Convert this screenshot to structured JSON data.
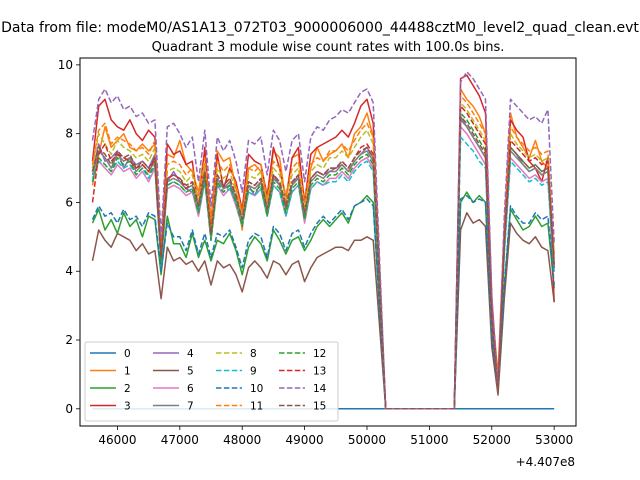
{
  "figure": {
    "suptitle": "Data from file: modeM0/AS1A13_072T03_9000006000_44488cztM0_level2_quad_clean.evt",
    "title": "Quadrant 3 module wise count rates with 100.0s bins."
  },
  "chart_data": {
    "type": "line",
    "title": "Quadrant 3 module wise count rates with 100.0s bins.",
    "xlabel": "",
    "ylabel": "",
    "x_offset_label": "+4.407e8",
    "xlim": [
      45400,
      53350
    ],
    "ylim": [
      -0.5,
      10.2
    ],
    "x_ticks": [
      46000,
      47000,
      48000,
      49000,
      50000,
      51000,
      52000,
      53000
    ],
    "y_ticks": [
      0,
      2,
      4,
      6,
      8,
      10
    ],
    "x_tick_labels": [
      "46000",
      "47000",
      "48000",
      "49000",
      "50000",
      "51000",
      "52000",
      "53000"
    ],
    "y_tick_labels": [
      "0",
      "2",
      "4",
      "6",
      "8",
      "10"
    ],
    "grid": false,
    "legend": {
      "placement": "lower-left",
      "columns": 4
    },
    "segments": {
      "seg1_x": [
        45600,
        45700,
        45800,
        45900,
        46000,
        46100,
        46200,
        46300,
        46400,
        46500,
        46600,
        46700,
        46800,
        46900,
        47000,
        47100,
        47200,
        47300,
        47400,
        47500,
        47600,
        47700,
        47800,
        47900,
        48000,
        48100,
        48200,
        48300,
        48400,
        48500,
        48600,
        48700,
        48800,
        48900,
        49000,
        49100,
        49200,
        49300,
        49400,
        49500,
        49600,
        49700,
        49800,
        49900,
        50000,
        50100
      ],
      "gap_x": [
        50300,
        51400
      ],
      "seg2_x": [
        51500,
        51600,
        51700,
        51800,
        51900,
        52000,
        52100,
        52200,
        52300,
        52400,
        52500,
        52600,
        52700,
        52800,
        52900,
        53000
      ]
    },
    "series": [
      {
        "name": "0",
        "color": "#1f77b4",
        "dash": "solid",
        "values": [
          0,
          0,
          0,
          0,
          0,
          0,
          0,
          0,
          0,
          0,
          0,
          0,
          0,
          0,
          0,
          0,
          0,
          0,
          0,
          0,
          0,
          0,
          0,
          0,
          0,
          0,
          0,
          0,
          0,
          0,
          0,
          0,
          0,
          0,
          0,
          0,
          0,
          0,
          0,
          0,
          0,
          0,
          0,
          0,
          0,
          0,
          0,
          0,
          0,
          0,
          0,
          0,
          0,
          0,
          0,
          0,
          0,
          0,
          0,
          0,
          0,
          0,
          0,
          0
        ]
      },
      {
        "name": "1",
        "color": "#ff7f0e",
        "dash": "solid",
        "values": [
          6.5,
          7.4,
          8.2,
          7.6,
          7.8,
          8.0,
          7.6,
          7.5,
          7.7,
          7.5,
          7.7,
          4.5,
          7.4,
          7.3,
          7.8,
          7.1,
          6.9,
          6.3,
          7.5,
          5.5,
          7.5,
          7.2,
          7.3,
          6.4,
          5.2,
          7.0,
          7.1,
          6.9,
          6.0,
          7.5,
          7.3,
          6.0,
          7.3,
          7.4,
          6.0,
          7.0,
          7.6,
          7.2,
          7.4,
          7.5,
          7.7,
          7.3,
          8.0,
          8.2,
          8.6,
          7.9,
          0,
          0,
          9.3,
          9.0,
          8.8,
          8.5,
          8.0,
          3.0,
          1.0,
          5.3,
          8.6,
          7.9,
          7.6,
          7.3,
          7.8,
          7.2,
          7.0,
          4.5
        ]
      },
      {
        "name": "2",
        "color": "#2ca02c",
        "dash": "solid",
        "values": [
          5.4,
          5.8,
          5.2,
          5.5,
          5.1,
          5.7,
          5.3,
          5.5,
          5.0,
          5.6,
          5.5,
          3.9,
          5.6,
          4.8,
          4.8,
          4.4,
          5.1,
          4.4,
          4.9,
          4.3,
          4.9,
          4.8,
          5.1,
          4.6,
          3.9,
          4.7,
          5.0,
          4.8,
          4.3,
          5.2,
          4.9,
          4.5,
          4.9,
          5.0,
          4.6,
          4.9,
          5.3,
          5.5,
          5.3,
          5.5,
          5.7,
          5.4,
          5.9,
          6.0,
          6.2,
          6.0,
          0,
          0,
          6.0,
          6.3,
          6.0,
          6.2,
          6.0,
          2.0,
          0.5,
          3.5,
          5.8,
          5.5,
          5.2,
          5.3,
          5.6,
          5.3,
          5.4,
          3.5
        ]
      },
      {
        "name": "3",
        "color": "#d62728",
        "dash": "solid",
        "values": [
          7.2,
          8.8,
          9.0,
          8.4,
          8.2,
          8.1,
          8.4,
          8.0,
          7.8,
          8.1,
          7.9,
          4.6,
          7.7,
          7.4,
          7.5,
          7.1,
          7.2,
          5.8,
          7.6,
          5.2,
          7.4,
          6.4,
          7.0,
          6.6,
          5.8,
          7.4,
          7.2,
          7.1,
          6.2,
          7.6,
          7.0,
          6.1,
          7.3,
          7.6,
          6.0,
          7.4,
          7.6,
          7.7,
          7.8,
          7.9,
          8.1,
          7.9,
          8.3,
          8.8,
          9.0,
          8.3,
          0,
          0,
          9.6,
          9.7,
          9.4,
          9.1,
          8.6,
          3.2,
          0.6,
          5.0,
          8.4,
          8.1,
          7.9,
          7.2,
          7.0,
          6.6,
          7.3,
          3.1
        ]
      },
      {
        "name": "4",
        "color": "#9467bd",
        "dash": "solid",
        "values": [
          6.9,
          7.7,
          7.2,
          7.3,
          7.5,
          7.0,
          7.3,
          7.1,
          7.2,
          7.0,
          7.4,
          4.4,
          6.6,
          6.9,
          6.6,
          6.4,
          6.3,
          5.9,
          7.0,
          5.0,
          6.7,
          6.4,
          6.5,
          6.0,
          5.5,
          6.5,
          6.2,
          6.6,
          5.8,
          6.8,
          6.5,
          5.8,
          6.5,
          6.8,
          5.6,
          6.7,
          6.9,
          6.8,
          6.9,
          7.0,
          7.1,
          6.9,
          7.2,
          7.4,
          7.6,
          7.3,
          0,
          0,
          8.5,
          8.2,
          7.9,
          7.6,
          7.3,
          2.6,
          0.5,
          4.8,
          7.6,
          7.4,
          7.1,
          6.9,
          7.0,
          6.8,
          6.9,
          4.1
        ]
      },
      {
        "name": "5",
        "color": "#8c564b",
        "dash": "solid",
        "values": [
          4.3,
          5.2,
          4.9,
          4.7,
          5.1,
          5.0,
          4.9,
          4.6,
          4.8,
          4.5,
          4.6,
          3.2,
          4.7,
          4.3,
          4.4,
          4.2,
          4.3,
          4.0,
          4.3,
          3.6,
          4.3,
          4.1,
          4.2,
          3.9,
          3.4,
          4.1,
          4.3,
          4.1,
          3.8,
          4.3,
          4.2,
          3.9,
          4.2,
          4.3,
          3.7,
          4.1,
          4.4,
          4.5,
          4.6,
          4.7,
          4.7,
          4.6,
          4.9,
          4.9,
          5.0,
          4.9,
          0,
          0,
          5.2,
          5.7,
          5.4,
          5.5,
          5.3,
          1.8,
          0.4,
          3.2,
          5.4,
          5.1,
          4.9,
          4.8,
          5.0,
          4.7,
          4.6,
          3.1
        ]
      },
      {
        "name": "6",
        "color": "#e377c2",
        "dash": "solid",
        "values": [
          6.6,
          7.2,
          7.0,
          6.8,
          7.1,
          6.9,
          7.0,
          6.7,
          6.9,
          6.6,
          7.0,
          4.2,
          6.4,
          6.5,
          6.4,
          6.2,
          6.3,
          5.6,
          6.6,
          4.9,
          6.5,
          6.2,
          6.4,
          5.9,
          5.3,
          6.3,
          6.2,
          6.4,
          5.6,
          6.5,
          6.3,
          5.6,
          6.3,
          6.5,
          5.4,
          6.4,
          6.6,
          6.5,
          6.7,
          6.7,
          6.9,
          6.7,
          7.0,
          7.2,
          7.3,
          7.0,
          0,
          0,
          8.2,
          8.0,
          7.7,
          7.4,
          7.1,
          2.5,
          0.5,
          4.6,
          7.3,
          7.1,
          6.9,
          6.7,
          6.8,
          6.6,
          6.7,
          4.0
        ]
      },
      {
        "name": "7",
        "color": "#7f7f7f",
        "dash": "solid",
        "values": [
          6.8,
          7.5,
          7.3,
          7.0,
          7.4,
          7.2,
          7.3,
          6.9,
          7.1,
          6.9,
          7.2,
          4.3,
          6.6,
          6.7,
          6.6,
          6.4,
          6.5,
          5.8,
          6.8,
          5.0,
          6.7,
          6.4,
          6.6,
          6.1,
          5.4,
          6.5,
          6.4,
          6.6,
          5.7,
          6.7,
          6.5,
          5.8,
          6.5,
          6.7,
          5.6,
          6.6,
          6.8,
          6.7,
          6.9,
          6.9,
          7.1,
          6.9,
          7.2,
          7.4,
          7.5,
          7.2,
          0,
          0,
          8.4,
          8.2,
          7.9,
          7.6,
          7.3,
          2.6,
          0.5,
          4.7,
          7.5,
          7.3,
          7.1,
          6.9,
          7.0,
          6.8,
          6.9,
          4.1
        ]
      },
      {
        "name": "8",
        "color": "#bcbd22",
        "dash": "dashed",
        "values": [
          7.0,
          8.0,
          7.7,
          7.4,
          7.8,
          7.6,
          7.5,
          7.3,
          7.4,
          7.2,
          7.6,
          4.5,
          6.9,
          7.0,
          6.9,
          6.6,
          6.8,
          6.0,
          7.1,
          5.2,
          7.0,
          6.7,
          6.9,
          6.3,
          5.6,
          6.8,
          6.7,
          6.9,
          6.0,
          7.0,
          6.8,
          6.1,
          6.8,
          7.0,
          5.8,
          6.9,
          7.1,
          7.0,
          7.3,
          7.3,
          7.5,
          7.3,
          7.6,
          7.9,
          8.1,
          7.7,
          0,
          0,
          8.9,
          8.7,
          8.4,
          8.1,
          7.8,
          2.8,
          0.5,
          5.0,
          8.0,
          7.7,
          7.5,
          7.3,
          7.4,
          7.2,
          7.3,
          4.3
        ]
      },
      {
        "name": "9",
        "color": "#17becf",
        "dash": "dashed",
        "values": [
          6.7,
          7.2,
          7.1,
          6.9,
          7.2,
          7.0,
          7.1,
          6.8,
          7.0,
          6.7,
          7.1,
          4.2,
          6.5,
          6.6,
          6.5,
          6.3,
          6.4,
          5.7,
          6.6,
          4.9,
          6.5,
          6.3,
          6.4,
          6.0,
          5.4,
          6.3,
          6.2,
          6.4,
          5.6,
          6.5,
          6.3,
          5.6,
          6.3,
          6.5,
          5.5,
          6.4,
          6.6,
          6.5,
          6.6,
          6.6,
          6.8,
          6.6,
          6.9,
          7.1,
          7.2,
          6.9,
          0,
          0,
          7.9,
          7.7,
          7.5,
          7.2,
          7.0,
          2.4,
          0.5,
          4.5,
          7.2,
          7.0,
          6.8,
          6.6,
          6.7,
          6.5,
          6.6,
          3.9
        ]
      },
      {
        "name": "10",
        "color": "#1f77b4",
        "dash": "dashed",
        "values": [
          5.5,
          5.9,
          5.6,
          5.7,
          5.4,
          5.8,
          5.5,
          5.6,
          5.3,
          5.7,
          5.6,
          4.0,
          5.4,
          5.0,
          5.0,
          4.6,
          5.2,
          4.5,
          5.1,
          4.4,
          5.1,
          5.0,
          5.2,
          4.7,
          4.1,
          4.9,
          5.1,
          5.0,
          4.4,
          5.3,
          5.1,
          4.6,
          5.1,
          5.2,
          4.7,
          5.1,
          5.4,
          5.6,
          5.4,
          5.6,
          5.8,
          5.5,
          5.9,
          6.0,
          6.1,
          5.9,
          0,
          0,
          6.1,
          6.2,
          6.0,
          6.1,
          6.0,
          2.1,
          0.5,
          3.6,
          5.9,
          5.6,
          5.4,
          5.4,
          5.7,
          5.5,
          5.6,
          3.6
        ]
      },
      {
        "name": "11",
        "color": "#ff7f0e",
        "dash": "dashed",
        "values": [
          7.1,
          8.1,
          8.3,
          7.7,
          7.9,
          7.8,
          7.7,
          7.5,
          7.6,
          7.4,
          7.8,
          4.6,
          7.1,
          7.2,
          7.1,
          6.8,
          7.0,
          6.2,
          7.3,
          5.3,
          7.2,
          6.9,
          7.1,
          6.5,
          5.7,
          7.0,
          6.9,
          7.1,
          6.1,
          7.2,
          7.0,
          6.2,
          7.0,
          7.2,
          6.0,
          7.1,
          7.3,
          7.2,
          7.5,
          7.5,
          7.7,
          7.5,
          7.8,
          8.1,
          8.3,
          7.9,
          0,
          0,
          9.1,
          8.9,
          8.6,
          8.3,
          8.0,
          2.9,
          0.5,
          5.1,
          8.2,
          7.9,
          7.7,
          7.5,
          7.6,
          7.4,
          7.5,
          4.4
        ]
      },
      {
        "name": "12",
        "color": "#2ca02c",
        "dash": "dashed",
        "values": [
          6.6,
          7.3,
          7.1,
          6.9,
          7.3,
          7.1,
          7.2,
          6.8,
          7.0,
          6.8,
          7.1,
          4.3,
          6.5,
          6.6,
          6.5,
          6.3,
          6.4,
          5.7,
          6.7,
          4.9,
          6.6,
          6.3,
          6.5,
          6.0,
          5.3,
          6.4,
          6.3,
          6.5,
          5.6,
          6.6,
          6.4,
          5.7,
          6.4,
          6.6,
          5.5,
          6.5,
          6.7,
          6.6,
          6.8,
          6.8,
          7.0,
          6.8,
          7.1,
          7.3,
          7.4,
          7.1,
          0,
          0,
          8.6,
          8.4,
          8.1,
          7.8,
          7.5,
          2.6,
          0.5,
          4.7,
          7.6,
          7.4,
          7.2,
          7.0,
          7.1,
          6.9,
          7.0,
          4.1
        ]
      },
      {
        "name": "13",
        "color": "#d62728",
        "dash": "dashed",
        "values": [
          6.0,
          7.4,
          7.7,
          7.2,
          7.4,
          7.3,
          7.2,
          7.0,
          7.1,
          6.9,
          7.3,
          4.4,
          6.7,
          6.8,
          6.7,
          6.4,
          6.6,
          5.9,
          6.9,
          5.1,
          6.8,
          6.5,
          6.7,
          6.2,
          5.5,
          6.6,
          6.5,
          6.7,
          5.8,
          6.8,
          6.6,
          5.9,
          6.6,
          6.8,
          5.7,
          6.7,
          6.9,
          6.8,
          7.0,
          7.0,
          7.2,
          7.0,
          7.3,
          7.6,
          7.7,
          7.4,
          0,
          0,
          8.8,
          8.6,
          8.3,
          8.0,
          7.7,
          2.7,
          0.5,
          4.9,
          7.8,
          7.6,
          7.4,
          7.2,
          7.3,
          7.1,
          7.2,
          4.2
        ]
      },
      {
        "name": "14",
        "color": "#9467bd",
        "dash": "dashed",
        "values": [
          7.8,
          9.0,
          9.3,
          8.9,
          9.1,
          8.7,
          8.8,
          8.5,
          8.6,
          8.3,
          8.4,
          5.0,
          8.2,
          8.3,
          8.0,
          7.6,
          7.9,
          6.6,
          8.1,
          5.9,
          7.9,
          7.5,
          7.8,
          7.2,
          6.3,
          7.8,
          7.7,
          7.9,
          6.8,
          8.1,
          7.8,
          6.9,
          7.8,
          8.0,
          6.6,
          7.9,
          8.2,
          8.1,
          8.4,
          8.5,
          8.7,
          8.6,
          8.9,
          9.2,
          9.3,
          8.9,
          0,
          0,
          9.5,
          9.8,
          9.6,
          9.3,
          9.0,
          3.3,
          0.6,
          5.6,
          9.0,
          8.8,
          8.6,
          8.4,
          8.5,
          8.3,
          8.7,
          4.8
        ]
      },
      {
        "name": "15",
        "color": "#8c564b",
        "dash": "dashed",
        "values": [
          6.9,
          7.6,
          7.4,
          7.1,
          7.5,
          7.3,
          7.4,
          7.0,
          7.2,
          7.0,
          7.3,
          4.4,
          6.7,
          6.8,
          6.7,
          6.5,
          6.6,
          5.9,
          6.9,
          5.1,
          6.8,
          6.5,
          6.7,
          6.2,
          5.5,
          6.6,
          6.5,
          6.7,
          5.8,
          6.8,
          6.6,
          5.9,
          6.6,
          6.8,
          5.7,
          6.7,
          6.9,
          6.8,
          7.0,
          7.0,
          7.2,
          7.0,
          7.3,
          7.5,
          7.6,
          7.3,
          0,
          0,
          8.5,
          8.3,
          8.0,
          7.7,
          7.4,
          2.6,
          0.5,
          4.8,
          7.6,
          7.4,
          7.2,
          7.0,
          7.1,
          6.9,
          7.0,
          4.2
        ]
      }
    ]
  }
}
